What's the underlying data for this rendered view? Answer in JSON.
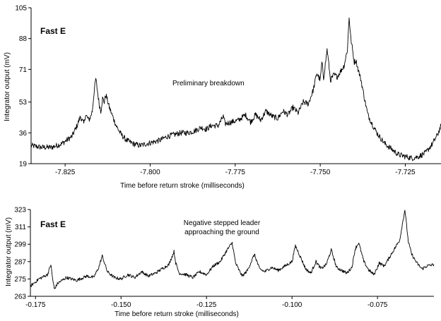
{
  "chart_data": [
    {
      "type": "line",
      "title": "Fast E",
      "annotation": "Preliminary breakdown",
      "xlabel": "Time before return stroke (milliseconds)",
      "ylabel": "Integrator output (mV)",
      "xlim": [
        -7.835,
        -7.7145
      ],
      "ylim": [
        19,
        105
      ],
      "xticks": [
        -7.825,
        -7.8,
        -7.775,
        -7.75,
        -7.725
      ],
      "xtick_labels": [
        "-7.825",
        "-7.800",
        "-7.775",
        "-7.750",
        "-7.725"
      ],
      "yticks": [
        19,
        36,
        53,
        71,
        88,
        105
      ],
      "ytick_labels": [
        "19",
        "36",
        "53",
        "71",
        "88",
        "105"
      ],
      "grid": false,
      "line_color": "#000000",
      "series": [
        {
          "x": [
            -7.835,
            -7.832,
            -7.829,
            -7.826,
            -7.823,
            -7.8215,
            -7.8205,
            -7.8195,
            -7.819,
            -7.818,
            -7.8175,
            -7.817,
            -7.8165,
            -7.816,
            -7.815,
            -7.8145,
            -7.814,
            -7.8135,
            -7.813,
            -7.812,
            -7.811,
            -7.81,
            -7.8085,
            -7.807,
            -7.805,
            -7.803,
            -7.801,
            -7.799,
            -7.797,
            -7.795,
            -7.793,
            -7.791,
            -7.789,
            -7.787,
            -7.785,
            -7.7835,
            -7.782,
            -7.78,
            -7.7785,
            -7.778,
            -7.776,
            -7.774,
            -7.772,
            -7.7705,
            -7.769,
            -7.7675,
            -7.766,
            -7.764,
            -7.7625,
            -7.761,
            -7.7595,
            -7.758,
            -7.7565,
            -7.755,
            -7.7535,
            -7.752,
            -7.751,
            -7.75,
            -7.7495,
            -7.749,
            -7.748,
            -7.7475,
            -7.747,
            -7.746,
            -7.745,
            -7.744,
            -7.743,
            -7.742,
            -7.7415,
            -7.741,
            -7.74,
            -7.7395,
            -7.739,
            -7.738,
            -7.737,
            -7.736,
            -7.7345,
            -7.733,
            -7.731,
            -7.729,
            -7.727,
            -7.725,
            -7.723,
            -7.721,
            -7.719,
            -7.717,
            -7.7155,
            -7.7145
          ],
          "y": [
            29,
            28,
            28,
            30,
            34,
            40,
            45,
            41,
            46,
            43,
            45,
            48,
            58,
            66,
            52,
            48,
            55,
            53,
            57,
            50,
            45,
            40,
            35,
            32,
            30,
            29,
            30,
            31,
            32,
            34,
            35,
            36,
            36,
            37,
            39,
            38,
            40,
            40,
            45,
            41,
            42,
            43,
            46,
            42,
            46,
            43,
            48,
            45,
            44,
            48,
            46,
            50,
            47,
            53,
            52,
            60,
            69,
            65,
            75,
            66,
            82,
            74,
            65,
            68,
            67,
            70,
            73,
            82,
            100,
            88,
            75,
            76,
            72,
            65,
            55,
            46,
            40,
            35,
            30,
            27,
            24,
            23,
            22,
            23,
            25,
            30,
            35,
            40
          ]
        }
      ]
    },
    {
      "type": "line",
      "title": "Fast E",
      "annotation": [
        "Negative stepped leader",
        "approaching the ground"
      ],
      "xlabel": "Time before return stroke (milliseconds)",
      "ylabel": "Integrator output (mV)",
      "xlim": [
        -0.1765,
        -0.0585
      ],
      "ylim": [
        263,
        323
      ],
      "xticks": [
        -0.175,
        -0.15,
        -0.125,
        -0.1,
        -0.075
      ],
      "xtick_labels": [
        "-0.175",
        "-0.150",
        "-0.125",
        "-0.100",
        "-0.075"
      ],
      "yticks": [
        263,
        275,
        287,
        299,
        311,
        323
      ],
      "ytick_labels": [
        "263",
        "275",
        "287",
        "299",
        "311",
        "323"
      ],
      "grid": false,
      "line_color": "#000000",
      "series": [
        {
          "x": [
            -0.1765,
            -0.174,
            -0.1715,
            -0.1705,
            -0.17,
            -0.1695,
            -0.1685,
            -0.166,
            -0.163,
            -0.16,
            -0.158,
            -0.1565,
            -0.1555,
            -0.154,
            -0.152,
            -0.15,
            -0.148,
            -0.146,
            -0.144,
            -0.142,
            -0.14,
            -0.138,
            -0.136,
            -0.1345,
            -0.134,
            -0.133,
            -0.131,
            -0.129,
            -0.127,
            -0.125,
            -0.123,
            -0.121,
            -0.119,
            -0.1175,
            -0.1165,
            -0.1155,
            -0.1145,
            -0.113,
            -0.111,
            -0.1095,
            -0.108,
            -0.106,
            -0.104,
            -0.102,
            -0.1,
            -0.099,
            -0.0975,
            -0.096,
            -0.0945,
            -0.093,
            -0.0915,
            -0.09,
            -0.0885,
            -0.087,
            -0.0855,
            -0.084,
            -0.0825,
            -0.0815,
            -0.0805,
            -0.079,
            -0.0775,
            -0.076,
            -0.0745,
            -0.073,
            -0.0715,
            -0.07,
            -0.0685,
            -0.067,
            -0.066,
            -0.065,
            -0.0635,
            -0.062,
            -0.0605,
            -0.0585
          ],
          "y": [
            270,
            275,
            278,
            285,
            275,
            268,
            272,
            276,
            274,
            277,
            276,
            283,
            291,
            280,
            276,
            275,
            278,
            276,
            280,
            277,
            279,
            282,
            285,
            294,
            286,
            279,
            278,
            276,
            280,
            278,
            284,
            287,
            295,
            300,
            286,
            281,
            277,
            281,
            292,
            282,
            280,
            283,
            281,
            284,
            287,
            298,
            290,
            282,
            279,
            287,
            282,
            285,
            295,
            283,
            281,
            279,
            283,
            296,
            300,
            287,
            281,
            278,
            286,
            284,
            290,
            296,
            302,
            323,
            301,
            292,
            286,
            282,
            284,
            285
          ]
        }
      ]
    }
  ]
}
